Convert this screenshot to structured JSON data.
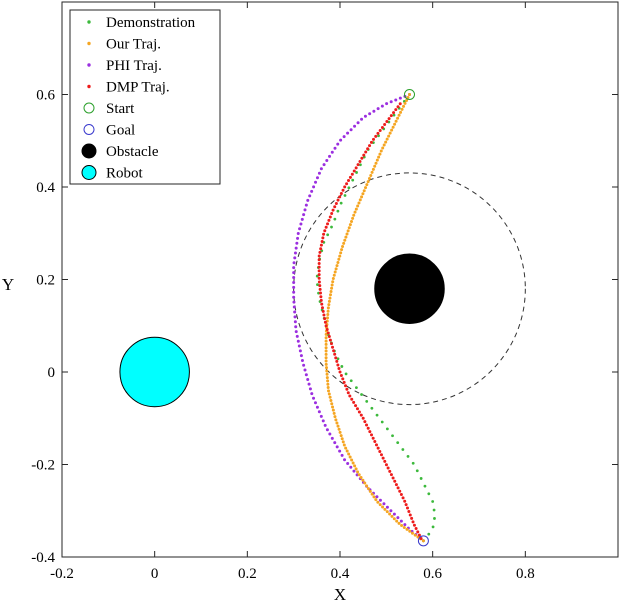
{
  "chart_data": {
    "type": "scatter",
    "xlabel": "X",
    "ylabel": "Y",
    "xlim": [
      -0.2,
      1.0
    ],
    "ylim": [
      -0.4,
      0.8
    ],
    "xticks": [
      "-0.2",
      "0",
      "0.2",
      "0.4",
      "0.6",
      "0.8"
    ],
    "yticks": [
      "-0.4",
      "-0.2",
      "0",
      "0.2",
      "0.4",
      "0.6"
    ],
    "grid": false,
    "legend_position": "top-left",
    "colors": {
      "demonstration": "#3cb93c",
      "ours": "#f5a623",
      "phi": "#9b2fe0",
      "dmp": "#ee1c1c",
      "start": "#2ca02c",
      "goal": "#3a3acd",
      "obstacle": "#000000",
      "robot": "#00ffff"
    },
    "legend": [
      {
        "label": "Demonstration",
        "kind": "dot",
        "color": "#3cb93c"
      },
      {
        "label": "Our Traj.",
        "kind": "dot",
        "color": "#f5a623"
      },
      {
        "label": "PHI Traj.",
        "kind": "dot",
        "color": "#9b2fe0"
      },
      {
        "label": "DMP Traj.",
        "kind": "dot",
        "color": "#ee1c1c"
      },
      {
        "label": "Start",
        "kind": "open-circle",
        "color": "#2ca02c"
      },
      {
        "label": "Goal",
        "kind": "open-circle",
        "color": "#3a3acd"
      },
      {
        "label": "Obstacle",
        "kind": "filled-circle",
        "color": "#000000"
      },
      {
        "label": "Robot",
        "kind": "filled-circle",
        "color": "#00ffff"
      }
    ],
    "start": [
      0.55,
      0.6
    ],
    "goal": [
      0.58,
      -0.365
    ],
    "obstacle": {
      "center": [
        0.55,
        0.18
      ],
      "radius": 0.075
    },
    "safety_boundary": {
      "center": [
        0.55,
        0.18
      ],
      "radius": 0.25
    },
    "robot": {
      "center": [
        0.0,
        0.0
      ],
      "radius": 0.075
    },
    "series": [
      {
        "name": "Demonstration",
        "points": [
          [
            0.55,
            0.6
          ],
          [
            0.52,
            0.56
          ],
          [
            0.49,
            0.52
          ],
          [
            0.46,
            0.48
          ],
          [
            0.44,
            0.44
          ],
          [
            0.42,
            0.4
          ],
          [
            0.4,
            0.36
          ],
          [
            0.385,
            0.32
          ],
          [
            0.365,
            0.28
          ],
          [
            0.355,
            0.24
          ],
          [
            0.35,
            0.2
          ],
          [
            0.355,
            0.16
          ],
          [
            0.365,
            0.12
          ],
          [
            0.375,
            0.08
          ],
          [
            0.39,
            0.04
          ],
          [
            0.41,
            0.0
          ],
          [
            0.44,
            -0.04
          ],
          [
            0.47,
            -0.08
          ],
          [
            0.5,
            -0.12
          ],
          [
            0.53,
            -0.16
          ],
          [
            0.56,
            -0.2
          ],
          [
            0.58,
            -0.24
          ],
          [
            0.6,
            -0.28
          ],
          [
            0.605,
            -0.31
          ],
          [
            0.6,
            -0.34
          ],
          [
            0.58,
            -0.365
          ]
        ]
      },
      {
        "name": "Our Traj.",
        "points": [
          [
            0.55,
            0.6
          ],
          [
            0.52,
            0.54
          ],
          [
            0.49,
            0.48
          ],
          [
            0.46,
            0.41
          ],
          [
            0.43,
            0.34
          ],
          [
            0.405,
            0.27
          ],
          [
            0.385,
            0.2
          ],
          [
            0.375,
            0.14
          ],
          [
            0.37,
            0.08
          ],
          [
            0.37,
            0.02
          ],
          [
            0.375,
            -0.04
          ],
          [
            0.39,
            -0.1
          ],
          [
            0.41,
            -0.16
          ],
          [
            0.44,
            -0.22
          ],
          [
            0.48,
            -0.28
          ],
          [
            0.53,
            -0.33
          ],
          [
            0.58,
            -0.365
          ]
        ]
      },
      {
        "name": "PHI Traj.",
        "points": [
          [
            0.55,
            0.6
          ],
          [
            0.5,
            0.58
          ],
          [
            0.45,
            0.55
          ],
          [
            0.4,
            0.5
          ],
          [
            0.36,
            0.44
          ],
          [
            0.33,
            0.37
          ],
          [
            0.31,
            0.3
          ],
          [
            0.3,
            0.23
          ],
          [
            0.3,
            0.16
          ],
          [
            0.305,
            0.09
          ],
          [
            0.32,
            0.02
          ],
          [
            0.34,
            -0.05
          ],
          [
            0.37,
            -0.12
          ],
          [
            0.41,
            -0.19
          ],
          [
            0.46,
            -0.25
          ],
          [
            0.51,
            -0.3
          ],
          [
            0.55,
            -0.34
          ],
          [
            0.58,
            -0.365
          ]
        ]
      },
      {
        "name": "DMP Traj.",
        "points": [
          [
            0.53,
            0.58
          ],
          [
            0.5,
            0.54
          ],
          [
            0.47,
            0.5
          ],
          [
            0.44,
            0.45
          ],
          [
            0.41,
            0.4
          ],
          [
            0.385,
            0.35
          ],
          [
            0.365,
            0.3
          ],
          [
            0.355,
            0.25
          ],
          [
            0.355,
            0.2
          ],
          [
            0.36,
            0.15
          ],
          [
            0.37,
            0.1
          ],
          [
            0.385,
            0.05
          ],
          [
            0.4,
            0.0
          ],
          [
            0.42,
            -0.05
          ],
          [
            0.45,
            -0.1
          ],
          [
            0.48,
            -0.16
          ],
          [
            0.51,
            -0.22
          ],
          [
            0.54,
            -0.28
          ],
          [
            0.56,
            -0.33
          ],
          [
            0.575,
            -0.36
          ]
        ]
      }
    ]
  }
}
